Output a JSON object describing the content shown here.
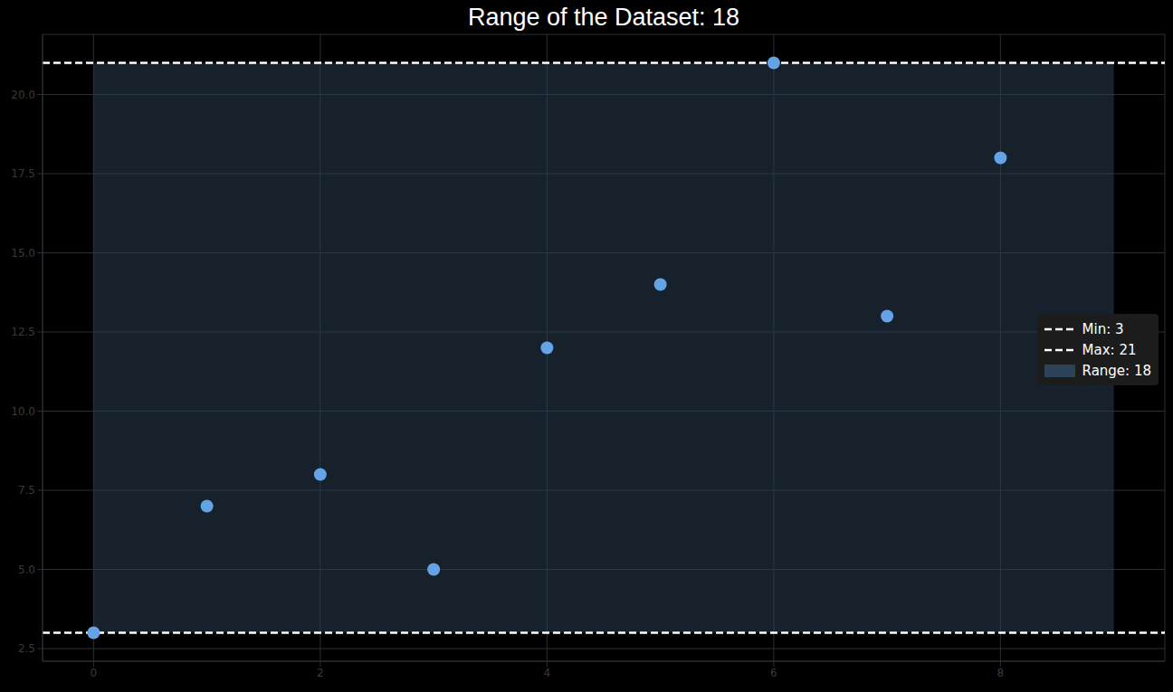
{
  "chart_data": {
    "type": "scatter",
    "title": "Range of the Dataset: 18",
    "x": [
      0,
      1,
      2,
      3,
      4,
      5,
      6,
      7,
      8
    ],
    "values": [
      3,
      7,
      8,
      5,
      12,
      14,
      21,
      13,
      18
    ],
    "color": "#64a4e6",
    "marker": "circle",
    "xlim": [
      -0.45,
      9.45
    ],
    "xticks": [
      0,
      2,
      4,
      6,
      8
    ],
    "ylim": [
      2.1,
      21.9
    ],
    "yticks": [
      2.5,
      {
        "value": 5,
        "label": "5.0"
      },
      7.5,
      {
        "value": 10,
        "label": "10.0"
      },
      12.5,
      {
        "value": 15,
        "label": "15.0"
      },
      17.5,
      {
        "value": 20,
        "label": "20.0"
      }
    ],
    "grid": true,
    "legend": "right",
    "hlines": [
      {
        "value": 3,
        "label": "Min: 3",
        "color": "#ffffff",
        "line_style": "dashed"
      },
      {
        "value": 21,
        "label": "Max: 21",
        "color": "#ffffff",
        "line_style": "dashed"
      }
    ],
    "span": {
      "x": [
        0,
        9
      ],
      "y": [
        3,
        21
      ],
      "label": "Range: 18",
      "color": "#2c4257"
    }
  }
}
